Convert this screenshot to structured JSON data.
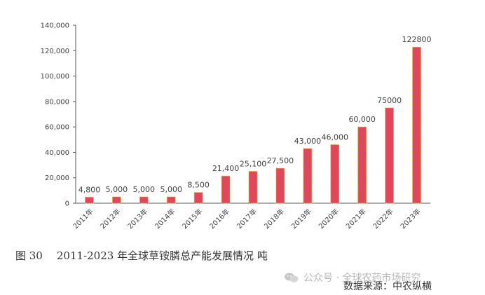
{
  "chart_data": {
    "type": "bar",
    "categories": [
      "2011年",
      "2012年",
      "2013年",
      "2014年",
      "2015年",
      "2016年",
      "2017年",
      "2018年",
      "2019年",
      "2020年",
      "2021年",
      "2022年",
      "2023年"
    ],
    "values": [
      4800,
      5000,
      5000,
      5000,
      8500,
      21400,
      25100,
      27500,
      43000,
      46000,
      60000,
      75000,
      122800
    ],
    "data_labels": [
      "4,800",
      "5,000",
      "5,000",
      "5,000",
      "8,500",
      "21,400",
      "25,100",
      "27,500",
      "43,000",
      "46,000",
      "60,000",
      "75000",
      "122800"
    ],
    "yticks": [
      0,
      20000,
      40000,
      60000,
      80000,
      100000,
      120000,
      140000
    ],
    "ytick_labels": [
      "0",
      "20,000",
      "40,000",
      "60,000",
      "80,000",
      "100,000",
      "120,000",
      "140,000"
    ],
    "ylim": [
      0,
      140000
    ],
    "grid": false,
    "bar_color": "#e0475a",
    "bar_border_color": "#d9b84a"
  },
  "caption": {
    "figure_number": "图 30",
    "text": "2011-2023 年全球草铵膦总产能发展情况 吨"
  },
  "watermark": {
    "text": "公众号 · 全球农药市场研究",
    "icon": "wechat-icon"
  },
  "source": "数据来源：中农纵横"
}
